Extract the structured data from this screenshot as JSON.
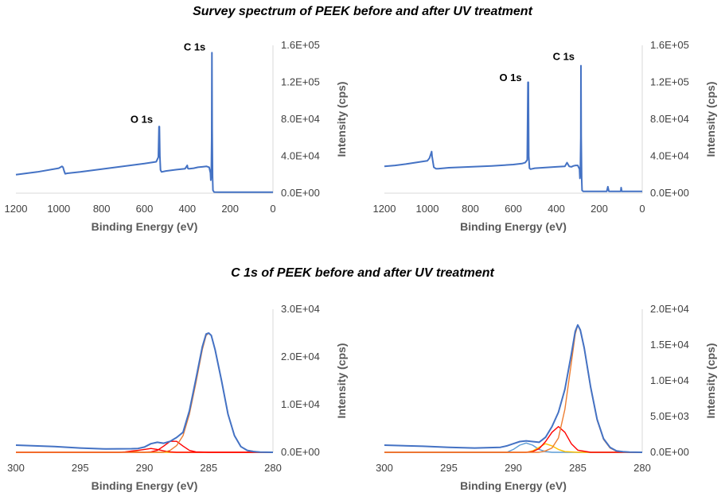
{
  "titles": {
    "survey": "Survey spectrum of PEEK before and after UV treatment",
    "c1s": "C 1s of PEEK before and after UV treatment"
  },
  "chart_data": [
    {
      "type": "line",
      "group": "survey",
      "xlabel": "Binding Energy (eV)",
      "ylabel": "Intensity (cps)",
      "xlim": [
        1200,
        0
      ],
      "ylim": [
        0,
        160000
      ],
      "x_ticks": [
        "1200",
        "1000",
        "800",
        "600",
        "400",
        "200",
        "0"
      ],
      "y_ticks": [
        "0.0E+00",
        "4.0E+04",
        "8.0E+04",
        "1.2E+05",
        "1.6E+05"
      ],
      "annotations": [
        {
          "text": "C 1s",
          "x": 285,
          "y": 150000
        },
        {
          "text": "O 1s",
          "x": 531,
          "y": 72000
        }
      ],
      "series": [
        {
          "color": "#4472c4",
          "x": [
            1200,
            1100,
            1000,
            985,
            980,
            975,
            970,
            960,
            900,
            800,
            700,
            600,
            560,
            545,
            535,
            532,
            530,
            528,
            525,
            520,
            500,
            450,
            410,
            400,
            398,
            395,
            390,
            370,
            350,
            330,
            310,
            298,
            292,
            290,
            288,
            286,
            285,
            284,
            282,
            280,
            275,
            250,
            200,
            150,
            100,
            50,
            20,
            0
          ],
          "y": [
            20000,
            23000,
            27000,
            29000,
            28000,
            24000,
            21000,
            21500,
            23000,
            26000,
            29000,
            32000,
            33500,
            34000,
            39000,
            72000,
            72000,
            40000,
            25000,
            23000,
            24000,
            25500,
            26500,
            30000,
            27000,
            26500,
            26500,
            27000,
            28000,
            28500,
            29000,
            28000,
            22000,
            14000,
            20000,
            60000,
            152000,
            70000,
            18000,
            3000,
            1200,
            1000,
            1000,
            1000,
            1000,
            1000,
            1000,
            1000
          ]
        }
      ]
    },
    {
      "type": "line",
      "group": "survey",
      "xlabel": "Binding Energy (eV)",
      "ylabel": "Intensity (cps)",
      "xlim": [
        1200,
        0
      ],
      "ylim": [
        0,
        160000
      ],
      "x_ticks": [
        "1200",
        "1000",
        "800",
        "600",
        "400",
        "200",
        "0"
      ],
      "y_ticks": [
        "0.0E+00",
        "4.0E+04",
        "8.0E+04",
        "1.2E+05",
        "1.6E+05"
      ],
      "annotations": [
        {
          "text": "C 1s",
          "x": 285,
          "y": 140000
        },
        {
          "text": "O 1s",
          "x": 531,
          "y": 117000
        }
      ],
      "series": [
        {
          "color": "#4472c4",
          "x": [
            1200,
            1150,
            1100,
            1000,
            990,
            980,
            978,
            975,
            970,
            960,
            950,
            900,
            800,
            700,
            600,
            560,
            545,
            535,
            532,
            530,
            528,
            525,
            520,
            500,
            400,
            360,
            350,
            340,
            330,
            320,
            310,
            300,
            292,
            290,
            288,
            286,
            285,
            284,
            282,
            280,
            275,
            250,
            170,
            165,
            160,
            155,
            150,
            100,
            98,
            95,
            92,
            50,
            20,
            0
          ],
          "y": [
            29000,
            30000,
            31500,
            35000,
            38000,
            45000,
            40000,
            35000,
            28000,
            26500,
            26500,
            27500,
            28500,
            29500,
            31000,
            32000,
            33000,
            36000,
            120000,
            120000,
            40000,
            27000,
            26000,
            27000,
            28500,
            29000,
            33000,
            29000,
            28500,
            29500,
            30000,
            30000,
            26000,
            16000,
            22000,
            60000,
            138000,
            62000,
            16000,
            3000,
            2000,
            2000,
            2000,
            2000,
            7000,
            2000,
            2000,
            2000,
            6000,
            2000,
            2000,
            2000,
            2000,
            2000
          ]
        }
      ]
    },
    {
      "type": "line",
      "group": "c1s",
      "xlabel": "Binding Energy (eV)",
      "ylabel": "Intensity (cps)",
      "xlim": [
        300,
        280
      ],
      "ylim": [
        0,
        30000
      ],
      "x_ticks": [
        "300",
        "295",
        "290",
        "285",
        "280"
      ],
      "y_ticks": [
        "0.0E+00",
        "1.0E+04",
        "2.0E+04",
        "3.0E+04"
      ],
      "series": [
        {
          "color": "#ffc000",
          "x": [
            300,
            296,
            292,
            291.5,
            291,
            290.5,
            290,
            289,
            288,
            286,
            284,
            282,
            280
          ],
          "y": [
            0,
            0,
            0,
            50,
            150,
            80,
            0,
            0,
            0,
            0,
            0,
            0,
            0
          ]
        },
        {
          "color": "#ff0000",
          "x": [
            300,
            296,
            292,
            291.5,
            291,
            290.5,
            290,
            289.5,
            289,
            288.5,
            288,
            287.5,
            287,
            286,
            284,
            282,
            280
          ],
          "y": [
            0,
            0,
            0,
            80,
            250,
            400,
            600,
            800,
            600,
            300,
            80,
            0,
            0,
            0,
            0,
            0,
            0
          ]
        },
        {
          "color": "#ff0000",
          "x": [
            300,
            296,
            292,
            290.5,
            290,
            289.5,
            289,
            288.5,
            288,
            287.5,
            287,
            286.5,
            286,
            285,
            284,
            282,
            280
          ],
          "y": [
            0,
            0,
            0,
            0,
            0,
            100,
            400,
            1300,
            2300,
            2300,
            1300,
            400,
            100,
            0,
            0,
            0,
            0
          ]
        },
        {
          "color": "#ed7d31",
          "x": [
            300,
            296,
            292,
            288.5,
            288,
            287.5,
            287,
            286.5,
            286,
            285.5,
            285.2,
            285,
            284.8,
            284.5,
            284,
            283.5,
            283,
            282.5,
            282,
            281,
            280
          ],
          "y": [
            0,
            0,
            0,
            0,
            400,
            1400,
            3500,
            8000,
            14500,
            21500,
            24500,
            25000,
            24500,
            21500,
            15000,
            8000,
            3500,
            1200,
            400,
            0,
            0
          ]
        },
        {
          "color": "#4472c4",
          "x": [
            300,
            297,
            295,
            293,
            291,
            290.5,
            290,
            289.5,
            289,
            288.5,
            288,
            287.5,
            287,
            286.5,
            286,
            285.5,
            285.2,
            285,
            284.8,
            284.5,
            284,
            283.5,
            283,
            282.5,
            282,
            281.5,
            281,
            280
          ],
          "y": [
            1500,
            1200,
            900,
            700,
            750,
            800,
            1100,
            1800,
            2100,
            1900,
            2300,
            3100,
            4200,
            8700,
            15300,
            22100,
            24800,
            25000,
            24500,
            21500,
            15000,
            8000,
            3500,
            1200,
            400,
            150,
            50,
            0
          ]
        }
      ]
    },
    {
      "type": "line",
      "group": "c1s",
      "xlabel": "Binding Energy (eV)",
      "ylabel": "Intensity (cps)",
      "xlim": [
        300,
        280
      ],
      "ylim": [
        0,
        20000
      ],
      "x_ticks": [
        "300",
        "295",
        "290",
        "285",
        "280"
      ],
      "y_ticks": [
        "0.0E+00",
        "5.0E+03",
        "1.0E+04",
        "1.5E+04",
        "2.0E+04"
      ],
      "series": [
        {
          "color": "#5b9bd5",
          "x": [
            300,
            296,
            292,
            290.5,
            290,
            289.5,
            289,
            288.5,
            288,
            287.5,
            287,
            286,
            284,
            282,
            280
          ],
          "y": [
            0,
            0,
            0,
            0,
            400,
            1000,
            1300,
            1000,
            400,
            100,
            0,
            0,
            0,
            0,
            0
          ]
        },
        {
          "color": "#ffc000",
          "x": [
            300,
            296,
            292,
            290,
            289,
            288.5,
            288,
            287.5,
            287,
            286.5,
            286,
            285,
            284,
            282,
            280
          ],
          "y": [
            0,
            0,
            0,
            0,
            0,
            200,
            700,
            1200,
            900,
            400,
            100,
            0,
            0,
            0,
            0
          ]
        },
        {
          "color": "#ff0000",
          "x": [
            300,
            296,
            292,
            290,
            289,
            288.5,
            288,
            287.5,
            287,
            286.5,
            286,
            285.5,
            285,
            284,
            282,
            280
          ],
          "y": [
            0,
            0,
            0,
            0,
            0,
            100,
            500,
            1500,
            2800,
            3600,
            2800,
            1200,
            300,
            0,
            0,
            0
          ]
        },
        {
          "color": "#ed7d31",
          "x": [
            300,
            296,
            292,
            288,
            287.5,
            287,
            286.5,
            286,
            285.5,
            285.2,
            285,
            284.8,
            284.5,
            284,
            283.5,
            283,
            282.5,
            282,
            281,
            280
          ],
          "y": [
            0,
            0,
            0,
            0,
            200,
            600,
            2000,
            6000,
            12500,
            16500,
            17800,
            17000,
            14500,
            9000,
            4500,
            1800,
            600,
            150,
            0,
            0
          ]
        },
        {
          "color": "#4472c4",
          "x": [
            300,
            297,
            295,
            293,
            291,
            290.5,
            290,
            289.5,
            289,
            288.5,
            288,
            287.5,
            287,
            286.5,
            286,
            285.5,
            285.2,
            285,
            284.8,
            284.5,
            284,
            283.5,
            283,
            282.5,
            282,
            281.5,
            281,
            280
          ],
          "y": [
            1000,
            850,
            700,
            600,
            700,
            900,
            1200,
            1500,
            1600,
            1500,
            1400,
            2100,
            3600,
            5600,
            8800,
            13700,
            16900,
            17800,
            17100,
            14600,
            9100,
            4600,
            1900,
            700,
            200,
            80,
            20,
            0
          ]
        }
      ]
    }
  ]
}
